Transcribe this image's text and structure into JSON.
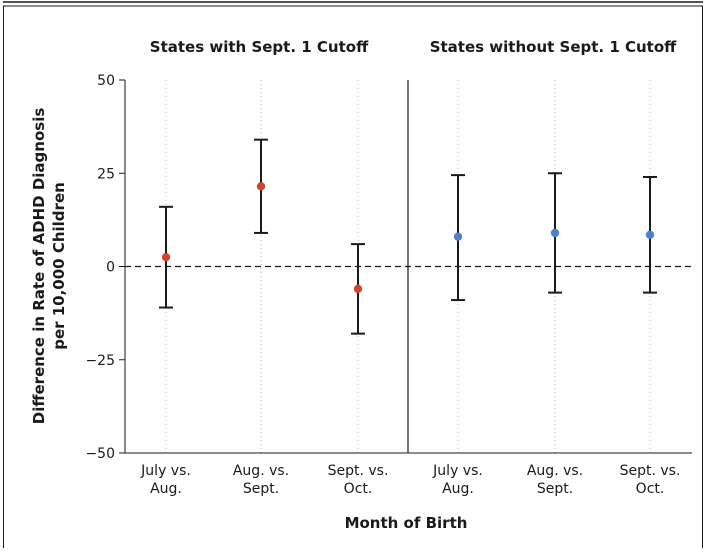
{
  "chart_data": {
    "type": "scatter",
    "ylabel_line1": "Difference in Rate of ADHD Diagnosis",
    "ylabel_line2": "per 10,000 Children",
    "xlabel": "Month of Birth",
    "ylim": [
      -50,
      50
    ],
    "yticks": [
      "50",
      "25",
      "0",
      "−25",
      "−50"
    ],
    "ytick_values": [
      50,
      25,
      0,
      -25,
      -50
    ],
    "reference_line": 0,
    "panels": [
      {
        "title": "States with Sept. 1 Cutoff",
        "color": "#d0482b",
        "categories": [
          {
            "line1": "July vs.",
            "line2": "Aug."
          },
          {
            "line1": "Aug. vs.",
            "line2": "Sept."
          },
          {
            "line1": "Sept. vs.",
            "line2": "Oct."
          }
        ],
        "values": [
          2.5,
          21.5,
          -6
        ],
        "lower": [
          -11,
          9,
          -18
        ],
        "upper": [
          16,
          34,
          6
        ]
      },
      {
        "title": "States without Sept. 1 Cutoff",
        "color": "#4d7fcb",
        "categories": [
          {
            "line1": "July vs.",
            "line2": "Aug."
          },
          {
            "line1": "Aug. vs.",
            "line2": "Sept."
          },
          {
            "line1": "Sept. vs.",
            "line2": "Oct."
          }
        ],
        "values": [
          8,
          9,
          8.5
        ],
        "lower": [
          -9,
          -7,
          -7
        ],
        "upper": [
          24.5,
          25,
          24
        ]
      }
    ]
  }
}
